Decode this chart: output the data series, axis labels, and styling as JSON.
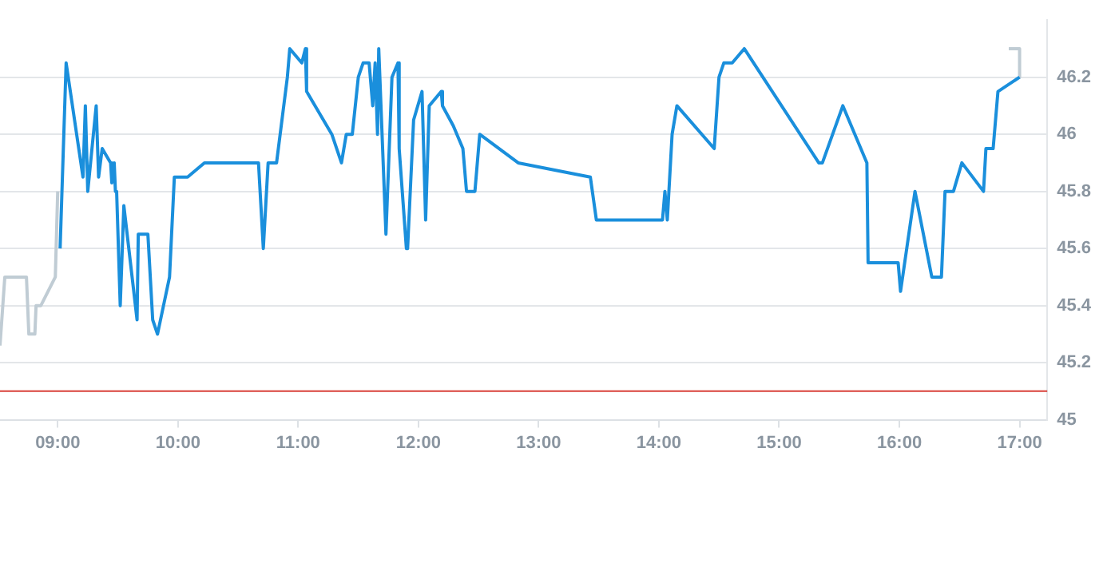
{
  "chart_data": {
    "type": "line",
    "xlim": [
      8.52,
      17.23
    ],
    "xticks": [
      {
        "value": 9,
        "label": "09:00"
      },
      {
        "value": 10,
        "label": "10:00"
      },
      {
        "value": 11,
        "label": "11:00"
      },
      {
        "value": 12,
        "label": "12:00"
      },
      {
        "value": 13,
        "label": "13:00"
      },
      {
        "value": 14,
        "label": "14:00"
      },
      {
        "value": 15,
        "label": "15:00"
      },
      {
        "value": 16,
        "label": "16:00"
      },
      {
        "value": 17,
        "label": "17:00"
      }
    ],
    "ylim": [
      45,
      46.4
    ],
    "yticks": [
      45,
      45.2,
      45.4,
      45.6,
      45.8,
      46,
      46.2
    ],
    "grid": "y",
    "marker": "none",
    "line_style": "solid",
    "ref_lines": [
      {
        "axis": "y",
        "value": 45.1,
        "color": "#d9413a"
      }
    ],
    "series": [
      {
        "color": "#c0ccd4",
        "x": [
          8.52,
          8.56,
          8.74,
          8.76,
          8.81,
          8.82,
          8.86,
          8.98,
          9.0
        ],
        "values": [
          45.26,
          45.5,
          45.5,
          45.3,
          45.3,
          45.4,
          45.4,
          45.5,
          45.8
        ]
      },
      {
        "color": "#1a8fdc",
        "x": [
          9.02,
          9.07,
          9.21,
          9.23,
          9.25,
          9.32,
          9.34,
          9.37,
          9.44,
          9.45,
          9.47,
          9.48,
          9.49,
          9.52,
          9.55,
          9.66,
          9.67,
          9.75,
          9.79,
          9.83,
          9.93,
          9.97,
          10.08,
          10.22,
          10.67,
          10.71,
          10.75,
          10.82,
          10.91,
          10.93,
          11.03,
          11.06,
          11.07,
          11.28,
          11.36,
          11.4,
          11.45,
          11.5,
          11.54,
          11.59,
          11.62,
          11.64,
          11.66,
          11.67,
          11.73,
          11.78,
          11.83,
          11.84,
          11.9,
          11.91,
          11.96,
          12.03,
          12.06,
          12.09,
          12.19,
          12.2,
          12.29,
          12.37,
          12.4,
          12.47,
          12.51,
          12.83,
          13.43,
          13.48,
          14.03,
          14.05,
          14.07,
          14.11,
          14.15,
          14.46,
          14.5,
          14.54,
          14.61,
          14.71,
          15.33,
          15.36,
          15.53,
          15.73,
          15.74,
          15.99,
          16.01,
          16.13,
          16.27,
          16.35,
          16.38,
          16.45,
          16.52,
          16.7,
          16.72,
          16.78,
          16.82,
          17.0
        ],
        "values": [
          45.6,
          46.25,
          45.85,
          46.1,
          45.8,
          46.1,
          45.85,
          45.95,
          45.9,
          45.83,
          45.9,
          45.8,
          45.8,
          45.4,
          45.75,
          45.35,
          45.65,
          45.65,
          45.35,
          45.3,
          45.5,
          45.85,
          45.85,
          45.9,
          45.9,
          45.6,
          45.9,
          45.9,
          46.2,
          46.3,
          46.25,
          46.3,
          46.15,
          46.0,
          45.9,
          46.0,
          46.0,
          46.2,
          46.25,
          46.25,
          46.1,
          46.25,
          46.0,
          46.3,
          45.65,
          46.2,
          46.25,
          45.95,
          45.6,
          45.6,
          46.05,
          46.15,
          45.7,
          46.1,
          46.15,
          46.1,
          46.03,
          45.95,
          45.8,
          45.8,
          46.0,
          45.9,
          45.85,
          45.7,
          45.7,
          45.8,
          45.7,
          46.0,
          46.1,
          45.95,
          46.2,
          46.25,
          46.25,
          46.3,
          45.9,
          45.9,
          46.1,
          45.9,
          45.55,
          45.55,
          45.45,
          45.8,
          45.5,
          45.5,
          45.8,
          45.8,
          45.9,
          45.8,
          45.95,
          45.95,
          46.15,
          46.2
        ]
      },
      {
        "color": "#c0ccd4",
        "x": [
          16.91,
          17.0,
          17.0
        ],
        "values": [
          46.3,
          46.3,
          46.2
        ]
      }
    ]
  }
}
